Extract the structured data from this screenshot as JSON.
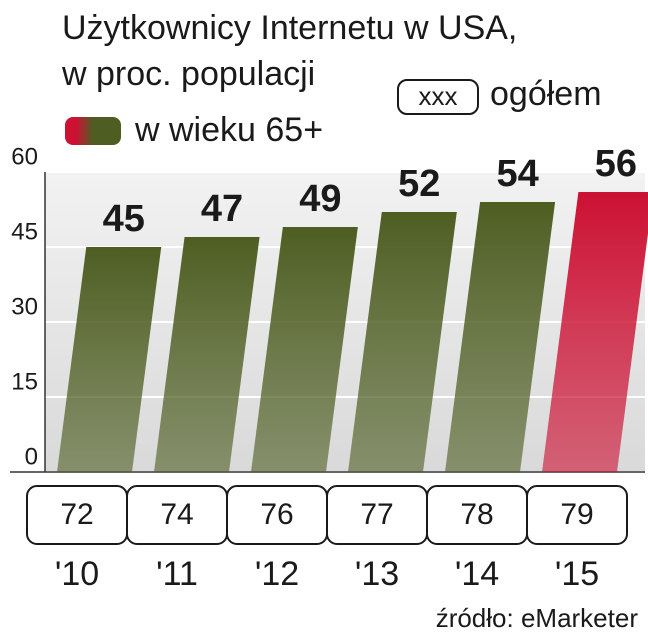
{
  "chart_data": {
    "type": "bar",
    "title": "Użytkownicy Internetu w USA,",
    "subtitle": "w proc. populacji",
    "categories": [
      "'10",
      "'11",
      "'12",
      "'13",
      "'14",
      "'15"
    ],
    "series": [
      {
        "name": "w wieku 65+",
        "colors": [
          "#4e5e22",
          "#4e5e22",
          "#4e5e22",
          "#4e5e22",
          "#4e5e22",
          "#cc1133"
        ],
        "values": [
          45,
          47,
          49,
          52,
          54,
          56
        ]
      }
    ],
    "totals": {
      "name": "ogółem",
      "sample": "xxx",
      "values": [
        72,
        74,
        76,
        77,
        78,
        79
      ]
    },
    "ylim": [
      0,
      60
    ],
    "yticks": [
      0,
      15,
      30,
      45,
      60
    ],
    "grid": true,
    "source": "źródło: eMarketer"
  }
}
